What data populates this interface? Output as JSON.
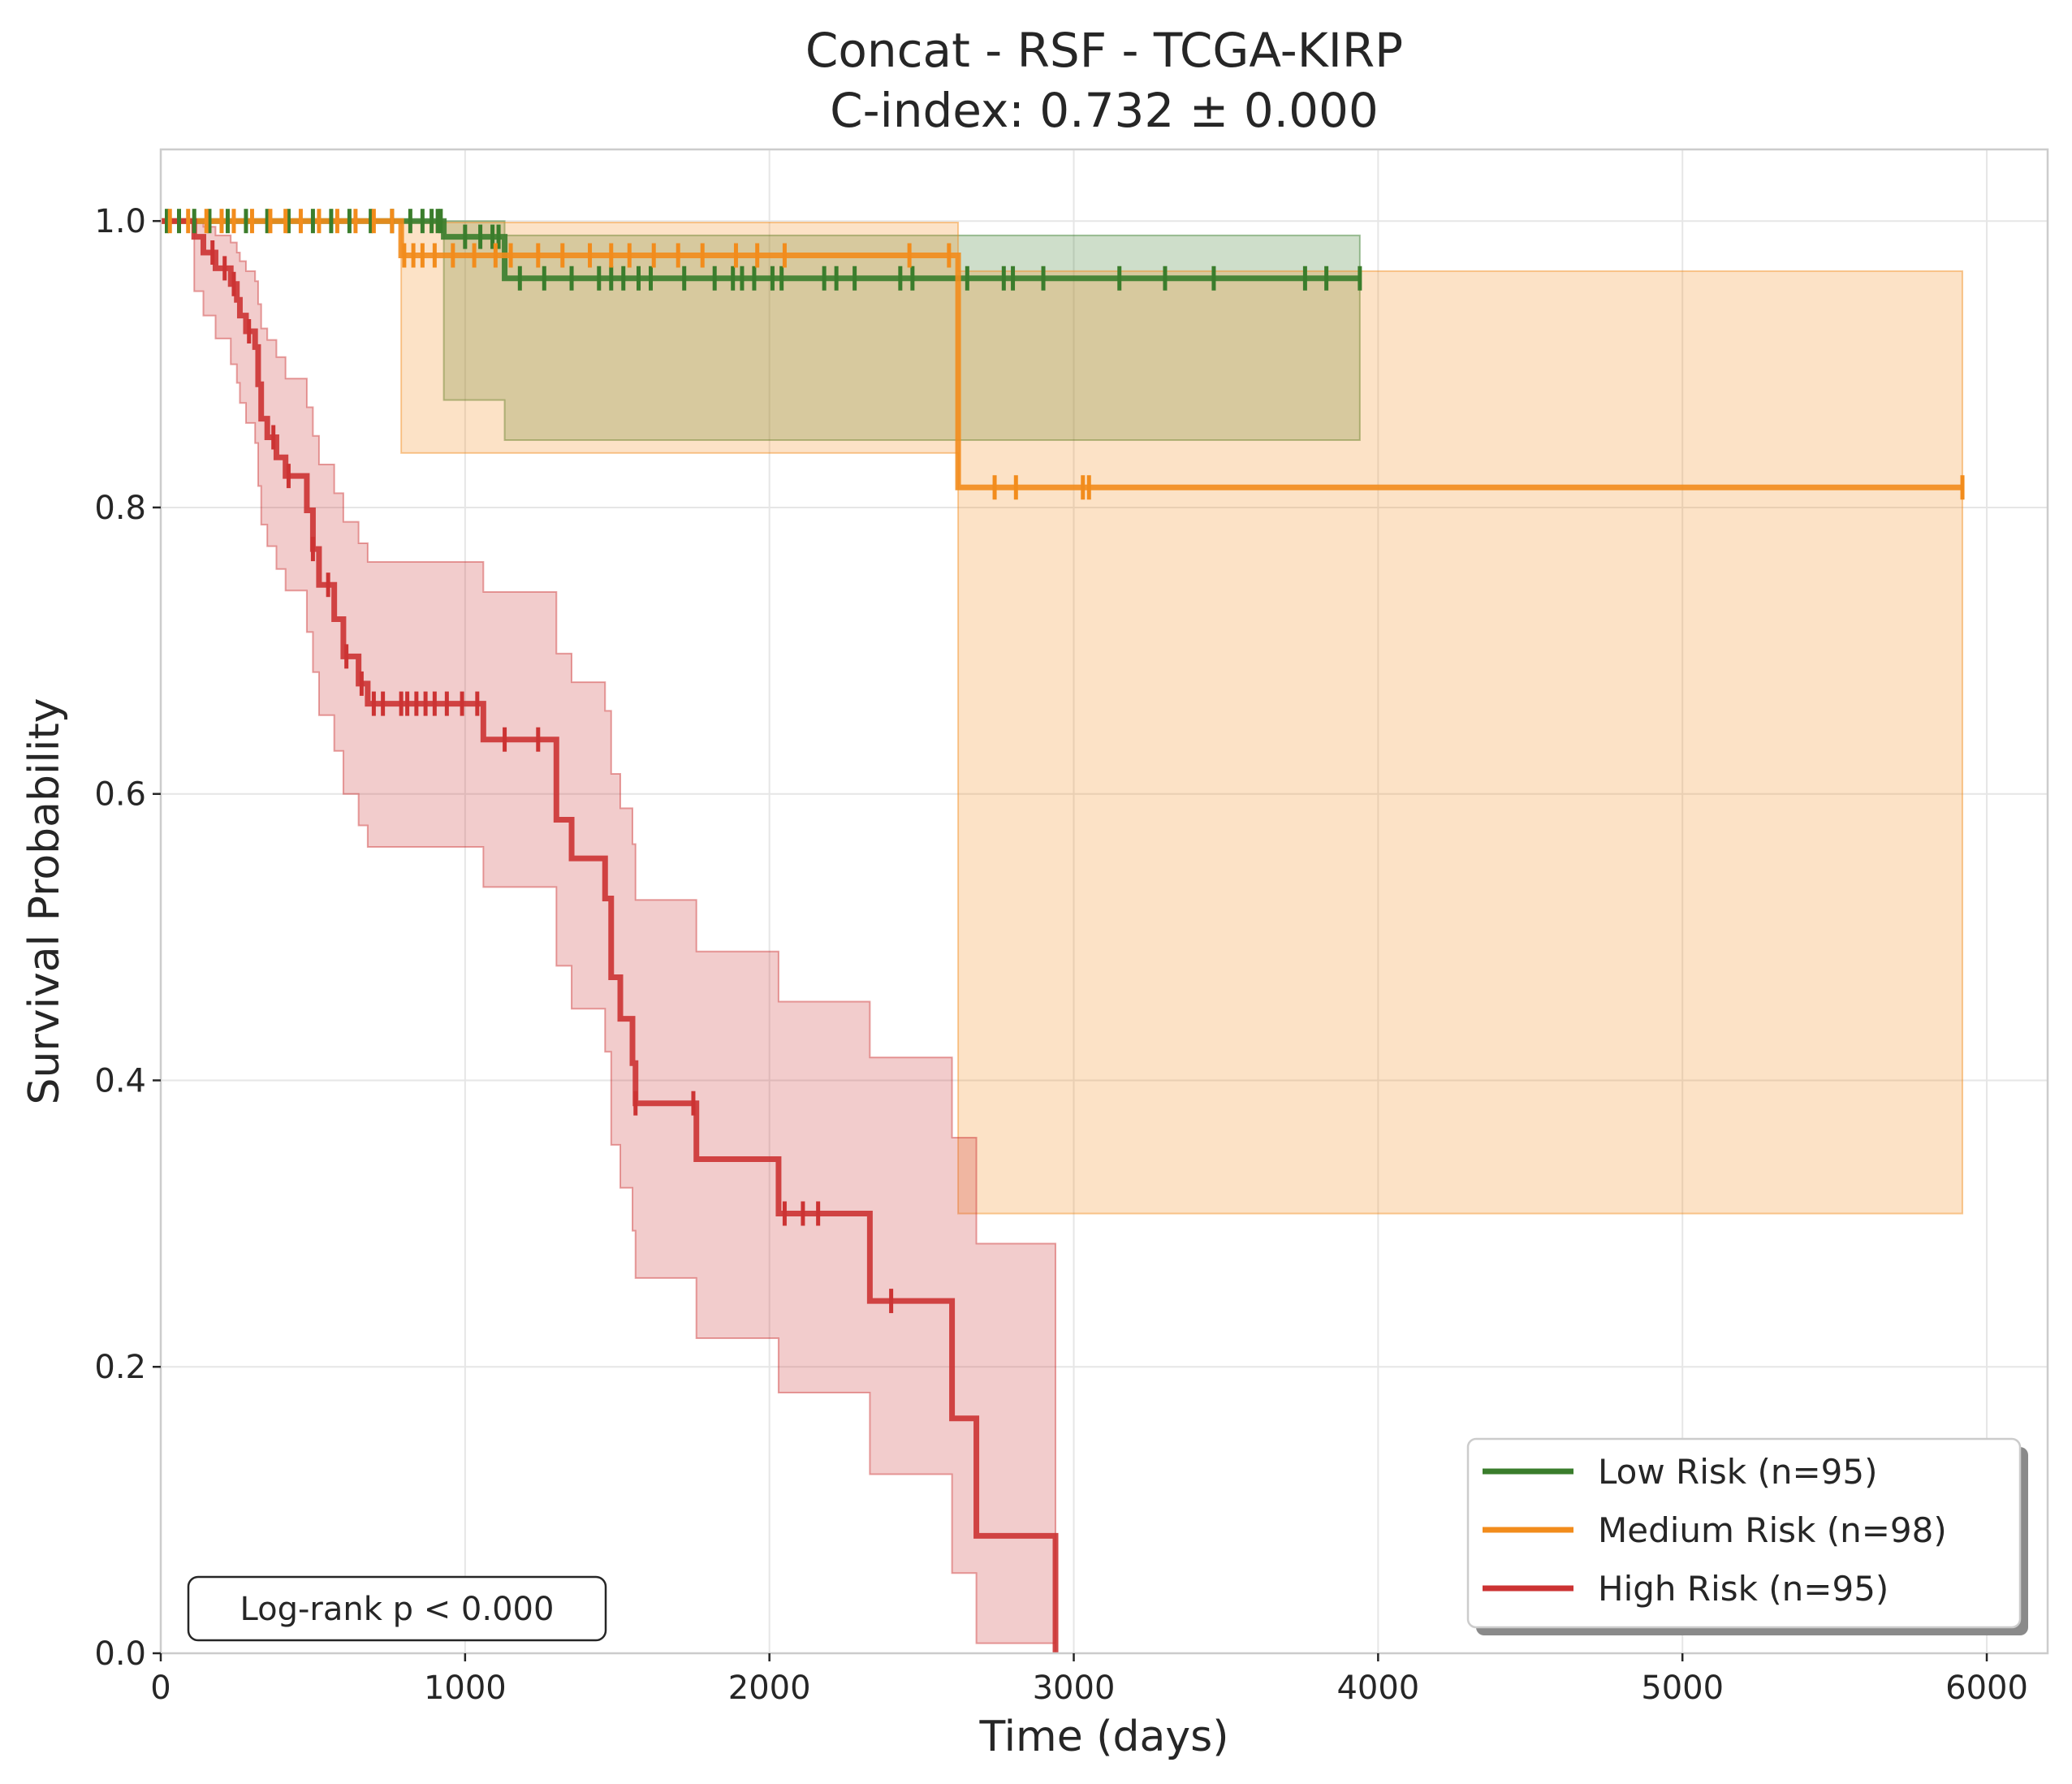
{
  "chart_data": {
    "type": "line",
    "subtype": "kaplan-meier",
    "title": "Concat - RSF - TCGA-KIRP",
    "subtitle": "C-index: 0.732 ± 0.000",
    "xlabel": "Time (days)",
    "ylabel": "Survival Probability",
    "xlim": [
      0,
      6200
    ],
    "ylim": [
      0,
      1.05
    ],
    "xticks": [
      0,
      1000,
      2000,
      3000,
      4000,
      5000,
      6000
    ],
    "xtick_labels": [
      "0",
      "1000",
      "2000",
      "3000",
      "4000",
      "5000",
      "6000"
    ],
    "yticks": [
      0,
      0.2,
      0.4,
      0.6,
      0.8,
      1.0
    ],
    "ytick_labels": [
      "0.0",
      "0.2",
      "0.4",
      "0.6",
      "0.8",
      "1.0"
    ],
    "grid": true,
    "legend_position": "bottom-right",
    "annotation": "Log-rank p < 0.000",
    "series": [
      {
        "name": "Low Risk (n=95)",
        "color": "#3a7d2c",
        "steps": [
          [
            0,
            1.0
          ],
          [
            930,
            0.989
          ],
          [
            1130,
            0.96
          ],
          [
            3940,
            0.96
          ]
        ],
        "ci_upper": [
          [
            0,
            1.0
          ],
          [
            930,
            1.0
          ],
          [
            1130,
            0.99
          ],
          [
            3940,
            0.99
          ]
        ],
        "ci_lower": [
          [
            0,
            1.0
          ],
          [
            930,
            0.875
          ],
          [
            1130,
            0.847
          ],
          [
            3940,
            0.847
          ]
        ],
        "censor_times": [
          20,
          60,
          110,
          160,
          220,
          280,
          350,
          420,
          500,
          560,
          620,
          690,
          760,
          820,
          860,
          890,
          910,
          920,
          1000,
          1050,
          1090,
          1110,
          1180,
          1260,
          1350,
          1440,
          1480,
          1520,
          1570,
          1610,
          1720,
          1820,
          1880,
          1910,
          1950,
          2010,
          2040,
          2180,
          2220,
          2280,
          2430,
          2470,
          2650,
          2770,
          2800,
          2900,
          3150,
          3300,
          3460,
          3760,
          3830,
          3940
        ]
      },
      {
        "name": "Medium Risk (n=98)",
        "color": "#f28c1c",
        "steps": [
          [
            0,
            1.0
          ],
          [
            790,
            0.976
          ],
          [
            2620,
            0.814
          ],
          [
            5920,
            0.814
          ]
        ],
        "ci_upper": [
          [
            0,
            1.0
          ],
          [
            790,
            0.999
          ],
          [
            2620,
            0.965
          ],
          [
            5920,
            0.965
          ]
        ],
        "ci_lower": [
          [
            0,
            1.0
          ],
          [
            790,
            0.838
          ],
          [
            2620,
            0.307
          ],
          [
            5920,
            0.307
          ]
        ],
        "censor_times": [
          30,
          90,
          150,
          200,
          240,
          300,
          360,
          410,
          460,
          520,
          580,
          640,
          700,
          760,
          800,
          830,
          860,
          900,
          960,
          1030,
          1100,
          1150,
          1240,
          1320,
          1410,
          1480,
          1540,
          1620,
          1700,
          1780,
          1890,
          1960,
          2050,
          2460,
          2590,
          2740,
          2810,
          3030,
          3050,
          5920
        ]
      },
      {
        "name": "High Risk (n=95)",
        "color": "#cc3333",
        "steps": [
          [
            0,
            1.0
          ],
          [
            110,
            0.989
          ],
          [
            140,
            0.978
          ],
          [
            180,
            0.967
          ],
          [
            230,
            0.956
          ],
          [
            250,
            0.945
          ],
          [
            260,
            0.934
          ],
          [
            280,
            0.923
          ],
          [
            310,
            0.912
          ],
          [
            320,
            0.886
          ],
          [
            330,
            0.862
          ],
          [
            350,
            0.849
          ],
          [
            380,
            0.835
          ],
          [
            410,
            0.822
          ],
          [
            480,
            0.798
          ],
          [
            500,
            0.771
          ],
          [
            520,
            0.746
          ],
          [
            570,
            0.722
          ],
          [
            600,
            0.696
          ],
          [
            650,
            0.677
          ],
          [
            680,
            0.663
          ],
          [
            1060,
            0.638
          ],
          [
            1300,
            0.582
          ],
          [
            1350,
            0.555
          ],
          [
            1460,
            0.527
          ],
          [
            1480,
            0.472
          ],
          [
            1510,
            0.443
          ],
          [
            1550,
            0.412
          ],
          [
            1560,
            0.384
          ],
          [
            1760,
            0.345
          ],
          [
            2030,
            0.307
          ],
          [
            2330,
            0.246
          ],
          [
            2600,
            0.164
          ],
          [
            2680,
            0.082
          ],
          [
            2940,
            0.0
          ]
        ],
        "ci_upper": [
          [
            0,
            1.0
          ],
          [
            110,
            0.999
          ],
          [
            140,
            0.996
          ],
          [
            180,
            0.99
          ],
          [
            230,
            0.985
          ],
          [
            250,
            0.978
          ],
          [
            260,
            0.972
          ],
          [
            280,
            0.965
          ],
          [
            310,
            0.958
          ],
          [
            320,
            0.942
          ],
          [
            330,
            0.925
          ],
          [
            350,
            0.917
          ],
          [
            380,
            0.905
          ],
          [
            410,
            0.89
          ],
          [
            480,
            0.87
          ],
          [
            500,
            0.85
          ],
          [
            520,
            0.83
          ],
          [
            570,
            0.81
          ],
          [
            600,
            0.79
          ],
          [
            650,
            0.775
          ],
          [
            680,
            0.762
          ],
          [
            1060,
            0.741
          ],
          [
            1300,
            0.698
          ],
          [
            1350,
            0.678
          ],
          [
            1460,
            0.658
          ],
          [
            1480,
            0.614
          ],
          [
            1510,
            0.59
          ],
          [
            1550,
            0.565
          ],
          [
            1560,
            0.526
          ],
          [
            1760,
            0.49
          ],
          [
            2030,
            0.455
          ],
          [
            2330,
            0.416
          ],
          [
            2600,
            0.36
          ],
          [
            2680,
            0.286
          ],
          [
            2940,
            0.286
          ]
        ],
        "ci_lower": [
          [
            0,
            1.0
          ],
          [
            110,
            0.951
          ],
          [
            140,
            0.934
          ],
          [
            180,
            0.918
          ],
          [
            230,
            0.9
          ],
          [
            250,
            0.887
          ],
          [
            260,
            0.873
          ],
          [
            280,
            0.859
          ],
          [
            310,
            0.845
          ],
          [
            320,
            0.815
          ],
          [
            330,
            0.788
          ],
          [
            350,
            0.773
          ],
          [
            380,
            0.757
          ],
          [
            410,
            0.742
          ],
          [
            480,
            0.713
          ],
          [
            500,
            0.685
          ],
          [
            520,
            0.655
          ],
          [
            570,
            0.63
          ],
          [
            600,
            0.6
          ],
          [
            650,
            0.578
          ],
          [
            680,
            0.563
          ],
          [
            1060,
            0.535
          ],
          [
            1300,
            0.48
          ],
          [
            1350,
            0.45
          ],
          [
            1460,
            0.42
          ],
          [
            1480,
            0.355
          ],
          [
            1510,
            0.325
          ],
          [
            1550,
            0.295
          ],
          [
            1560,
            0.262
          ],
          [
            1760,
            0.22
          ],
          [
            2030,
            0.182
          ],
          [
            2330,
            0.125
          ],
          [
            2600,
            0.056
          ],
          [
            2680,
            0.007
          ],
          [
            2940,
            0.0
          ]
        ],
        "censor_times": [
          170,
          210,
          240,
          290,
          370,
          420,
          500,
          550,
          610,
          660,
          700,
          730,
          790,
          810,
          840,
          870,
          900,
          940,
          990,
          1040,
          1130,
          1240,
          1560,
          1750,
          2050,
          2110,
          2160,
          2400
        ]
      }
    ]
  }
}
